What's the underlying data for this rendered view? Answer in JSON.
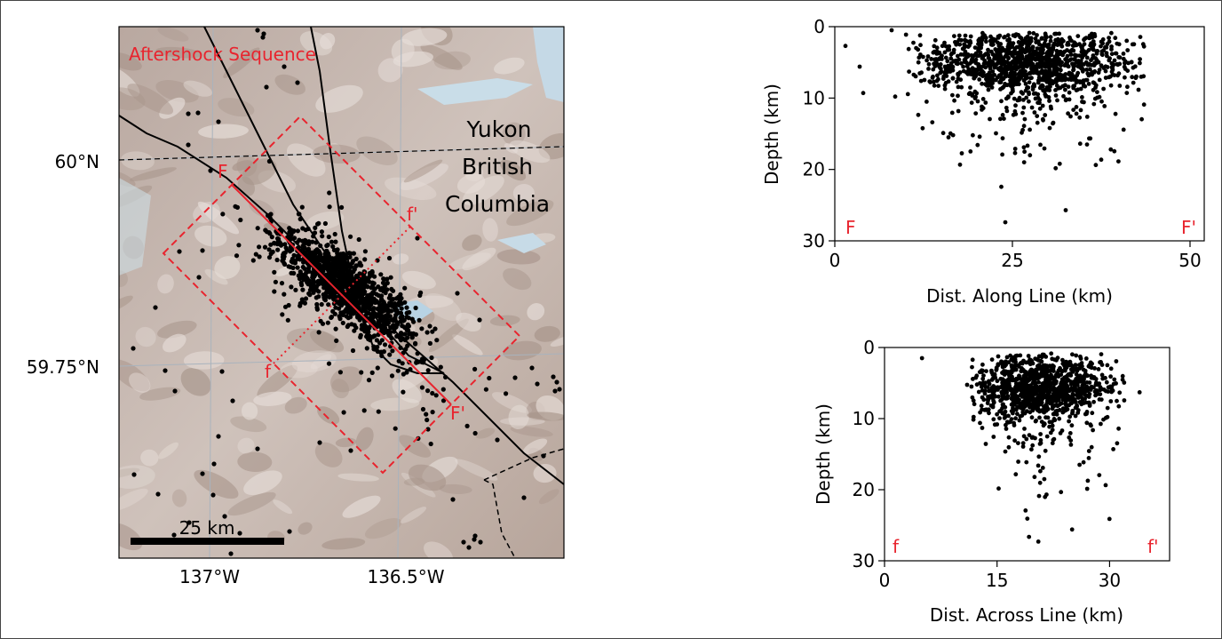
{
  "map": {
    "title": "Aftershock Sequence",
    "lat_labels": [
      "60°N",
      "59.75°N"
    ],
    "lon_labels": [
      "137°W",
      "136.5°W"
    ],
    "region_labels": [
      "Yukon",
      "British",
      "Columbia"
    ],
    "scalebar_label": "25 km",
    "section_labels": {
      "F": "F",
      "F_prime": "F'",
      "f": "f",
      "f_prime": "f'"
    },
    "colors": {
      "section": "#e8242e",
      "events": "#000000",
      "faults": "#000000",
      "title": "#e8242e"
    }
  },
  "chart_data": [
    {
      "type": "scatter",
      "xlabel": "Dist. Along Line (km)",
      "ylabel": "Depth (km)",
      "xlim": [
        0,
        52
      ],
      "ylim": [
        30,
        0
      ],
      "x_ticks": [
        0,
        25,
        50
      ],
      "y_ticks": [
        0,
        10,
        20,
        30
      ],
      "end_labels": [
        "F",
        "F'"
      ],
      "outliers": [
        {
          "x": 1.5,
          "y": 2.7
        },
        {
          "x": 3.5,
          "y": 5.6
        },
        {
          "x": 4,
          "y": 9.3
        },
        {
          "x": 8.5,
          "y": 9.8
        },
        {
          "x": 24,
          "y": 27.4
        },
        {
          "x": 32.5,
          "y": 25.7
        },
        {
          "x": 35.5,
          "y": 16.5
        },
        {
          "x": 8,
          "y": 0.5
        },
        {
          "x": 16,
          "y": 15.5
        }
      ],
      "cluster": {
        "x_range": [
          10,
          44
        ],
        "center_x": 27,
        "center_depth": 5,
        "depth_spread": 4
      }
    },
    {
      "type": "scatter",
      "xlabel": "Dist. Across Line (km)",
      "ylabel": "Depth (km)",
      "xlim": [
        0,
        38
      ],
      "ylim": [
        30,
        0
      ],
      "x_ticks": [
        0,
        15,
        30
      ],
      "y_ticks": [
        0,
        10,
        20,
        30
      ],
      "end_labels": [
        "f",
        "f'"
      ],
      "outliers": [
        {
          "x": 5,
          "y": 1.5
        },
        {
          "x": 20.5,
          "y": 27.3
        },
        {
          "x": 25,
          "y": 25.6
        },
        {
          "x": 34,
          "y": 6.3
        },
        {
          "x": 30.5,
          "y": 14.3
        },
        {
          "x": 26,
          "y": 16.5
        }
      ],
      "cluster": {
        "x_range": [
          11,
          32
        ],
        "center_x": 21,
        "center_depth": 5.5,
        "depth_spread": 4
      }
    }
  ]
}
